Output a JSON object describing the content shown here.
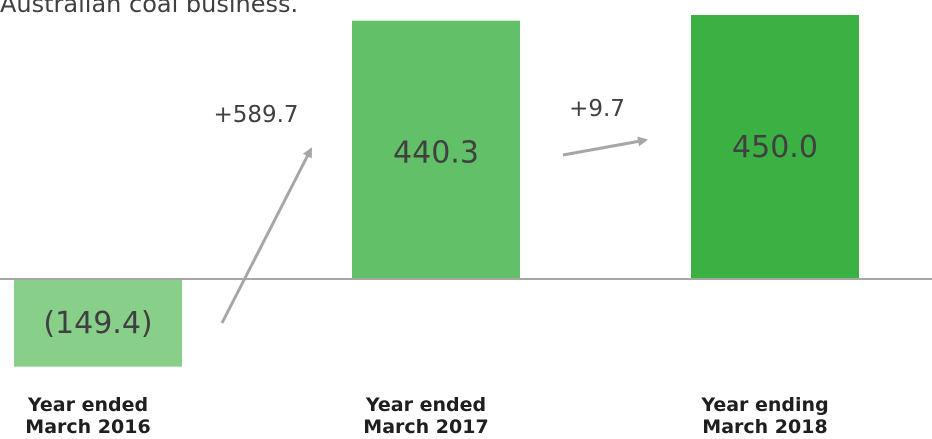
{
  "header": {
    "partial_text": "Australian coal business."
  },
  "chart_data": {
    "type": "bar",
    "categories": [
      [
        "Year ended",
        "March 2016"
      ],
      [
        "Year ended",
        "March 2017"
      ],
      [
        "Year ending",
        "March 2018"
      ]
    ],
    "values": [
      -149.4,
      440.3,
      450.0
    ],
    "value_labels": [
      "(149.4)",
      "440.3",
      "450.0"
    ],
    "changes": [
      {
        "from": 0,
        "to": 1,
        "label": "+589.7"
      },
      {
        "from": 1,
        "to": 2,
        "label": "+9.7"
      }
    ],
    "colors": {
      "bar_past": "#88cf8a",
      "bar_mid": "#61c068",
      "bar_forecast": "#3bb143",
      "arrow": "#a6a6a6",
      "baseline": "#a6a6a6"
    },
    "title": "",
    "xlabel": "",
    "ylabel": ""
  }
}
